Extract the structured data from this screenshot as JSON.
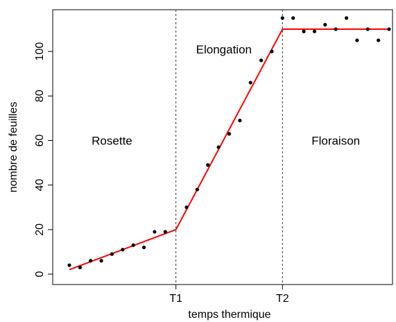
{
  "chart_data": {
    "type": "scatter",
    "xlabel": "temps thermique",
    "ylabel": "nombre de feuilles",
    "ylim": [
      0,
      115
    ],
    "y_ticks": [
      0,
      20,
      40,
      60,
      80,
      100
    ],
    "x_ticks": [
      "T1",
      "T2"
    ],
    "breakpoints": [
      {
        "label": "T1",
        "x": 10
      },
      {
        "label": "T2",
        "x": 20
      }
    ],
    "xlim": [
      -1,
      30
    ],
    "phases": [
      {
        "label": "Rosette",
        "x": 4,
        "y": 60
      },
      {
        "label": "Elongation",
        "x": 14.5,
        "y": 101
      },
      {
        "label": "Floraison",
        "x": 25,
        "y": 60
      }
    ],
    "points": [
      {
        "x": 0,
        "y": 4
      },
      {
        "x": 1,
        "y": 3
      },
      {
        "x": 2,
        "y": 6
      },
      {
        "x": 3,
        "y": 6
      },
      {
        "x": 4,
        "y": 9
      },
      {
        "x": 5,
        "y": 11
      },
      {
        "x": 6,
        "y": 13
      },
      {
        "x": 7,
        "y": 12
      },
      {
        "x": 8,
        "y": 19
      },
      {
        "x": 9,
        "y": 19
      },
      {
        "x": 11,
        "y": 30
      },
      {
        "x": 12,
        "y": 38
      },
      {
        "x": 13,
        "y": 49
      },
      {
        "x": 14,
        "y": 57
      },
      {
        "x": 15,
        "y": 63
      },
      {
        "x": 16,
        "y": 69
      },
      {
        "x": 17,
        "y": 86
      },
      {
        "x": 18,
        "y": 96
      },
      {
        "x": 19,
        "y": 100
      },
      {
        "x": 20,
        "y": 115
      },
      {
        "x": 21,
        "y": 115
      },
      {
        "x": 22,
        "y": 109
      },
      {
        "x": 23,
        "y": 109
      },
      {
        "x": 24,
        "y": 112
      },
      {
        "x": 25,
        "y": 110
      },
      {
        "x": 26,
        "y": 115
      },
      {
        "x": 27,
        "y": 105
      },
      {
        "x": 28,
        "y": 110
      },
      {
        "x": 29,
        "y": 105
      },
      {
        "x": 30,
        "y": 110
      }
    ],
    "fit_line": [
      {
        "x": 0,
        "y": 2
      },
      {
        "x": 10,
        "y": 20
      },
      {
        "x": 20,
        "y": 110
      },
      {
        "x": 30,
        "y": 110
      }
    ],
    "colors": {
      "fit": "#ff0000",
      "points": "#000000",
      "breakpoint_line": "#333333"
    }
  }
}
